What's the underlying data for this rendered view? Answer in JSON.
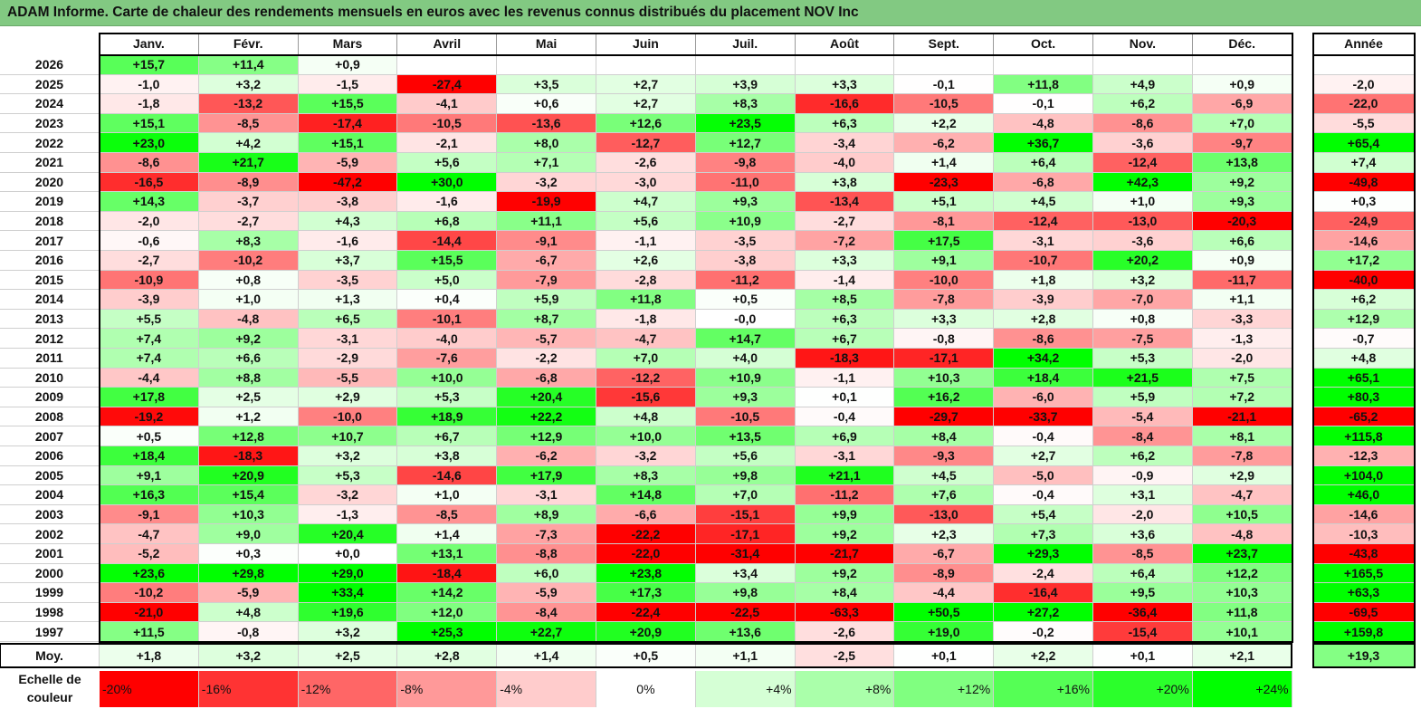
{
  "title": "ADAM Informe. Carte de chaleur des rendements mensuels en euros avec les revenus connus distribués du placement NOV Inc",
  "colors": {
    "neg_max": "#ff0000",
    "pos_max": "#00ff00",
    "neutral": "#ffffff"
  },
  "chart_data": {
    "type": "heatmap",
    "title": "ADAM Informe. Carte de chaleur des rendements mensuels en euros avec les revenus connus distribués du placement NOV Inc",
    "months": [
      "Janv.",
      "Févr.",
      "Mars",
      "Avril",
      "Mai",
      "Juin",
      "Juil.",
      "Août",
      "Sept.",
      "Oct.",
      "Nov.",
      "Déc."
    ],
    "year_header": "Année",
    "avg_label": "Moy.",
    "rows": [
      {
        "year": "2026",
        "values": [
          "+15,7",
          "+11,4",
          "+0,9",
          "",
          "",
          "",
          "",
          "",
          "",
          "",
          "",
          ""
        ],
        "annual": ""
      },
      {
        "year": "2025",
        "values": [
          "-1,0",
          "+3,2",
          "-1,5",
          "-27,4",
          "+3,5",
          "+2,7",
          "+3,9",
          "+3,3",
          "-0,1",
          "+11,8",
          "+4,9",
          "+0,9"
        ],
        "annual": "-2,0"
      },
      {
        "year": "2024",
        "values": [
          "-1,8",
          "-13,2",
          "+15,5",
          "-4,1",
          "+0,6",
          "+2,7",
          "+8,3",
          "-16,6",
          "-10,5",
          "-0,1",
          "+6,2",
          "-6,9"
        ],
        "annual": "-22,0"
      },
      {
        "year": "2023",
        "values": [
          "+15,1",
          "-8,5",
          "-17,4",
          "-10,5",
          "-13,6",
          "+12,6",
          "+23,5",
          "+6,3",
          "+2,2",
          "-4,8",
          "-8,6",
          "+7,0"
        ],
        "annual": "-5,5"
      },
      {
        "year": "2022",
        "values": [
          "+23,0",
          "+4,2",
          "+15,1",
          "-2,1",
          "+8,0",
          "-12,7",
          "+12,7",
          "-3,4",
          "-6,2",
          "+36,7",
          "-3,6",
          "-9,7"
        ],
        "annual": "+65,4"
      },
      {
        "year": "2021",
        "values": [
          "-8,6",
          "+21,7",
          "-5,9",
          "+5,6",
          "+7,1",
          "-2,6",
          "-9,8",
          "-4,0",
          "+1,4",
          "+6,4",
          "-12,4",
          "+13,8"
        ],
        "annual": "+7,4"
      },
      {
        "year": "2020",
        "values": [
          "-16,5",
          "-8,9",
          "-47,2",
          "+30,0",
          "-3,2",
          "-3,0",
          "-11,0",
          "+3,8",
          "-23,3",
          "-6,8",
          "+42,3",
          "+9,2"
        ],
        "annual": "-49,8"
      },
      {
        "year": "2019",
        "values": [
          "+14,3",
          "-3,7",
          "-3,8",
          "-1,6",
          "-19,9",
          "+4,7",
          "+9,3",
          "-13,4",
          "+5,1",
          "+4,5",
          "+1,0",
          "+9,3"
        ],
        "annual": "+0,3"
      },
      {
        "year": "2018",
        "values": [
          "-2,0",
          "-2,7",
          "+4,3",
          "+6,8",
          "+11,1",
          "+5,6",
          "+10,9",
          "-2,7",
          "-8,1",
          "-12,4",
          "-13,0",
          "-20,3"
        ],
        "annual": "-24,9"
      },
      {
        "year": "2017",
        "values": [
          "-0,6",
          "+8,3",
          "-1,6",
          "-14,4",
          "-9,1",
          "-1,1",
          "-3,5",
          "-7,2",
          "+17,5",
          "-3,1",
          "-3,6",
          "+6,6"
        ],
        "annual": "-14,6"
      },
      {
        "year": "2016",
        "values": [
          "-2,7",
          "-10,2",
          "+3,7",
          "+15,5",
          "-6,7",
          "+2,6",
          "-3,8",
          "+3,3",
          "+9,1",
          "-10,7",
          "+20,2",
          "+0,9"
        ],
        "annual": "+17,2"
      },
      {
        "year": "2015",
        "values": [
          "-10,9",
          "+0,8",
          "-3,5",
          "+5,0",
          "-7,9",
          "-2,8",
          "-11,2",
          "-1,4",
          "-10,0",
          "+1,8",
          "+3,2",
          "-11,7"
        ],
        "annual": "-40,0"
      },
      {
        "year": "2014",
        "values": [
          "-3,9",
          "+1,0",
          "+1,3",
          "+0,4",
          "+5,9",
          "+11,8",
          "+0,5",
          "+8,5",
          "-7,8",
          "-3,9",
          "-7,0",
          "+1,1"
        ],
        "annual": "+6,2"
      },
      {
        "year": "2013",
        "values": [
          "+5,5",
          "-4,8",
          "+6,5",
          "-10,1",
          "+8,7",
          "-1,8",
          "-0,0",
          "+6,3",
          "+3,3",
          "+2,8",
          "+0,8",
          "-3,3"
        ],
        "annual": "+12,9"
      },
      {
        "year": "2012",
        "values": [
          "+7,4",
          "+9,2",
          "-3,1",
          "-4,0",
          "-5,7",
          "-4,7",
          "+14,7",
          "+6,7",
          "-0,8",
          "-8,6",
          "-7,5",
          "-1,3"
        ],
        "annual": "-0,7"
      },
      {
        "year": "2011",
        "values": [
          "+7,4",
          "+6,6",
          "-2,9",
          "-7,6",
          "-2,2",
          "+7,0",
          "+4,0",
          "-18,3",
          "-17,1",
          "+34,2",
          "+5,3",
          "-2,0"
        ],
        "annual": "+4,8"
      },
      {
        "year": "2010",
        "values": [
          "-4,4",
          "+8,8",
          "-5,5",
          "+10,0",
          "-6,8",
          "-12,2",
          "+10,9",
          "-1,1",
          "+10,3",
          "+18,4",
          "+21,5",
          "+7,5"
        ],
        "annual": "+65,1"
      },
      {
        "year": "2009",
        "values": [
          "+17,8",
          "+2,5",
          "+2,9",
          "+5,3",
          "+20,4",
          "-15,6",
          "+9,3",
          "+0,1",
          "+16,2",
          "-6,0",
          "+5,9",
          "+7,2"
        ],
        "annual": "+80,3"
      },
      {
        "year": "2008",
        "values": [
          "-19,2",
          "+1,2",
          "-10,0",
          "+18,9",
          "+22,2",
          "+4,8",
          "-10,5",
          "-0,4",
          "-29,7",
          "-33,7",
          "-5,4",
          "-21,1"
        ],
        "annual": "-65,2"
      },
      {
        "year": "2007",
        "values": [
          "+0,5",
          "+12,8",
          "+10,7",
          "+6,7",
          "+12,9",
          "+10,0",
          "+13,5",
          "+6,9",
          "+8,4",
          "-0,4",
          "-8,4",
          "+8,1"
        ],
        "annual": "+115,8"
      },
      {
        "year": "2006",
        "values": [
          "+18,4",
          "-18,3",
          "+3,2",
          "+3,8",
          "-6,2",
          "-3,2",
          "+5,6",
          "-3,1",
          "-9,3",
          "+2,7",
          "+6,2",
          "-7,8"
        ],
        "annual": "-12,3"
      },
      {
        "year": "2005",
        "values": [
          "+9,1",
          "+20,9",
          "+5,3",
          "-14,6",
          "+17,9",
          "+8,3",
          "+9,8",
          "+21,1",
          "+4,5",
          "-5,0",
          "-0,9",
          "+2,9"
        ],
        "annual": "+104,0"
      },
      {
        "year": "2004",
        "values": [
          "+16,3",
          "+15,4",
          "-3,2",
          "+1,0",
          "-3,1",
          "+14,8",
          "+7,0",
          "-11,2",
          "+7,6",
          "-0,4",
          "+3,1",
          "-4,7"
        ],
        "annual": "+46,0"
      },
      {
        "year": "2003",
        "values": [
          "-9,1",
          "+10,3",
          "-1,3",
          "-8,5",
          "+8,9",
          "-6,6",
          "-15,1",
          "+9,9",
          "-13,0",
          "+5,4",
          "-2,0",
          "+10,5"
        ],
        "annual": "-14,6"
      },
      {
        "year": "2002",
        "values": [
          "-4,7",
          "+9,0",
          "+20,4",
          "+1,4",
          "-7,3",
          "-22,2",
          "-17,1",
          "+9,2",
          "+2,3",
          "+7,3",
          "+3,6",
          "-4,8"
        ],
        "annual": "-10,3"
      },
      {
        "year": "2001",
        "values": [
          "-5,2",
          "+0,3",
          "+0,0",
          "+13,1",
          "-8,8",
          "-22,0",
          "-31,4",
          "-21,7",
          "-6,7",
          "+29,3",
          "-8,5",
          "+23,7"
        ],
        "annual": "-43,8"
      },
      {
        "year": "2000",
        "values": [
          "+23,6",
          "+29,8",
          "+29,0",
          "-18,4",
          "+6,0",
          "+23,8",
          "+3,4",
          "+9,2",
          "-8,9",
          "-2,4",
          "+6,4",
          "+12,2"
        ],
        "annual": "+165,5"
      },
      {
        "year": "1999",
        "values": [
          "-10,2",
          "-5,9",
          "+33,4",
          "+14,2",
          "-5,9",
          "+17,3",
          "+9,8",
          "+8,4",
          "-4,4",
          "-16,4",
          "+9,5",
          "+10,3"
        ],
        "annual": "+63,3"
      },
      {
        "year": "1998",
        "values": [
          "-21,0",
          "+4,8",
          "+19,6",
          "+12,0",
          "-8,4",
          "-22,4",
          "-22,5",
          "-63,3",
          "+50,5",
          "+27,2",
          "-36,4",
          "+11,8"
        ],
        "annual": "-69,5"
      },
      {
        "year": "1997",
        "values": [
          "+11,5",
          "-0,8",
          "+3,2",
          "+25,3",
          "+22,7",
          "+20,9",
          "+13,6",
          "-2,6",
          "+19,0",
          "-0,2",
          "-15,4",
          "+10,1"
        ],
        "annual": "+159,8"
      }
    ],
    "averages": [
      "+1,8",
      "+3,2",
      "+2,5",
      "+2,8",
      "+1,4",
      "+0,5",
      "+1,1",
      "-2,5",
      "+0,1",
      "+2,2",
      "+0,1",
      "+2,1"
    ],
    "average_annual": "+19,3",
    "color_scale": {
      "label": "Echelle de couleur",
      "steps": [
        "-20%",
        "-16%",
        "-12%",
        "-8%",
        "-4%",
        "0%",
        "+4%",
        "+8%",
        "+12%",
        "+16%",
        "+20%",
        "+24%"
      ]
    }
  }
}
